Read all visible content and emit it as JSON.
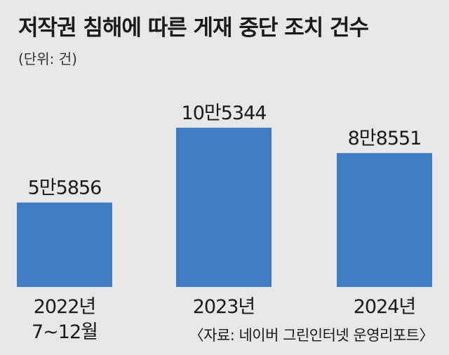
{
  "header": {
    "title": "저작권 침해에 따른 게재 중단 조치 건수",
    "unit": "(단위: 건)"
  },
  "source": "〈자료: 네이버 그린인터넷 운영리포트〉",
  "colors": {
    "bar": "#3f7cc4",
    "background": "#e7e7e8"
  },
  "chart_data": {
    "type": "bar",
    "title": "저작권 침해에 따른 게재 중단 조치 건수",
    "unit": "(단위: 건)",
    "categories": [
      [
        "2022년",
        "7~12월"
      ],
      [
        "2023년"
      ],
      [
        "2024년"
      ]
    ],
    "values": [
      55856,
      105344,
      88551
    ],
    "value_labels": [
      "5만5856",
      "10만5344",
      "8만8551"
    ],
    "xlabel": "",
    "ylabel": "",
    "ylim": [
      0,
      125000
    ],
    "grid": false,
    "legend": "none"
  }
}
